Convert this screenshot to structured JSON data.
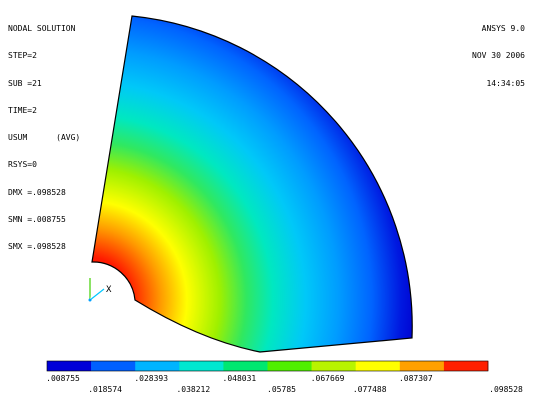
{
  "info": {
    "title": "NODAL SOLUTION",
    "step": "STEP=2",
    "sub": "SUB =21",
    "time": "TIME=2",
    "usum": "USUM      (AVG)",
    "rsys": "RSYS=0",
    "dmx": "DMX =.098528",
    "smn": "SMN =.008755",
    "smx": "SMX =.098528"
  },
  "header": {
    "app": "ANSYS 9.0",
    "date": "NOV 30 2006",
    "time": "14:34:05"
  },
  "triad": {
    "x_label": "X"
  },
  "legend": {
    "colors": [
      "#0000d8",
      "#0060ff",
      "#00b4ff",
      "#00e8d0",
      "#00e870",
      "#50f000",
      "#b8f400",
      "#ffff00",
      "#ffa000",
      "#ff2000"
    ],
    "top_labels": [
      ".008755",
      ".028393",
      ".048031",
      ".067669",
      ".087307"
    ],
    "bottom_labels": [
      ".018574",
      ".038212",
      ".05785",
      ".077488",
      ".098528"
    ]
  }
}
